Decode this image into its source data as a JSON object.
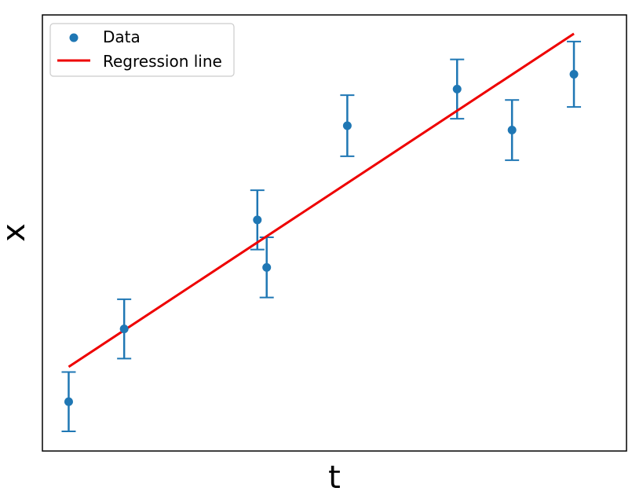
{
  "chart_data": {
    "type": "scatter",
    "title": "",
    "xlabel": "t",
    "ylabel": "x",
    "xlim": [
      0.0,
      10.0
    ],
    "ylim": [
      0.0,
      10.0
    ],
    "grid": false,
    "show_ticks": false,
    "legend_position": "top-left",
    "colors": {
      "data": "#1f77b4",
      "regression": "#ee0000",
      "axes": "#000000"
    },
    "series": [
      {
        "name": "Data",
        "kind": "points_with_errorbars",
        "x": [
          0.45,
          1.4,
          3.68,
          3.84,
          5.22,
          7.1,
          8.04,
          9.1
        ],
        "y": [
          1.13,
          2.8,
          5.3,
          4.21,
          7.46,
          8.3,
          7.36,
          8.64
        ],
        "yerr": [
          0.68,
          0.68,
          0.68,
          0.69,
          0.7,
          0.68,
          0.69,
          0.75
        ]
      },
      {
        "name": "Regression line",
        "kind": "line",
        "x": [
          0.45,
          9.1
        ],
        "y": [
          1.93,
          9.57
        ]
      }
    ],
    "legend": [
      {
        "label": "Data",
        "marker": "point"
      },
      {
        "label": "Regression line",
        "marker": "line"
      }
    ]
  }
}
